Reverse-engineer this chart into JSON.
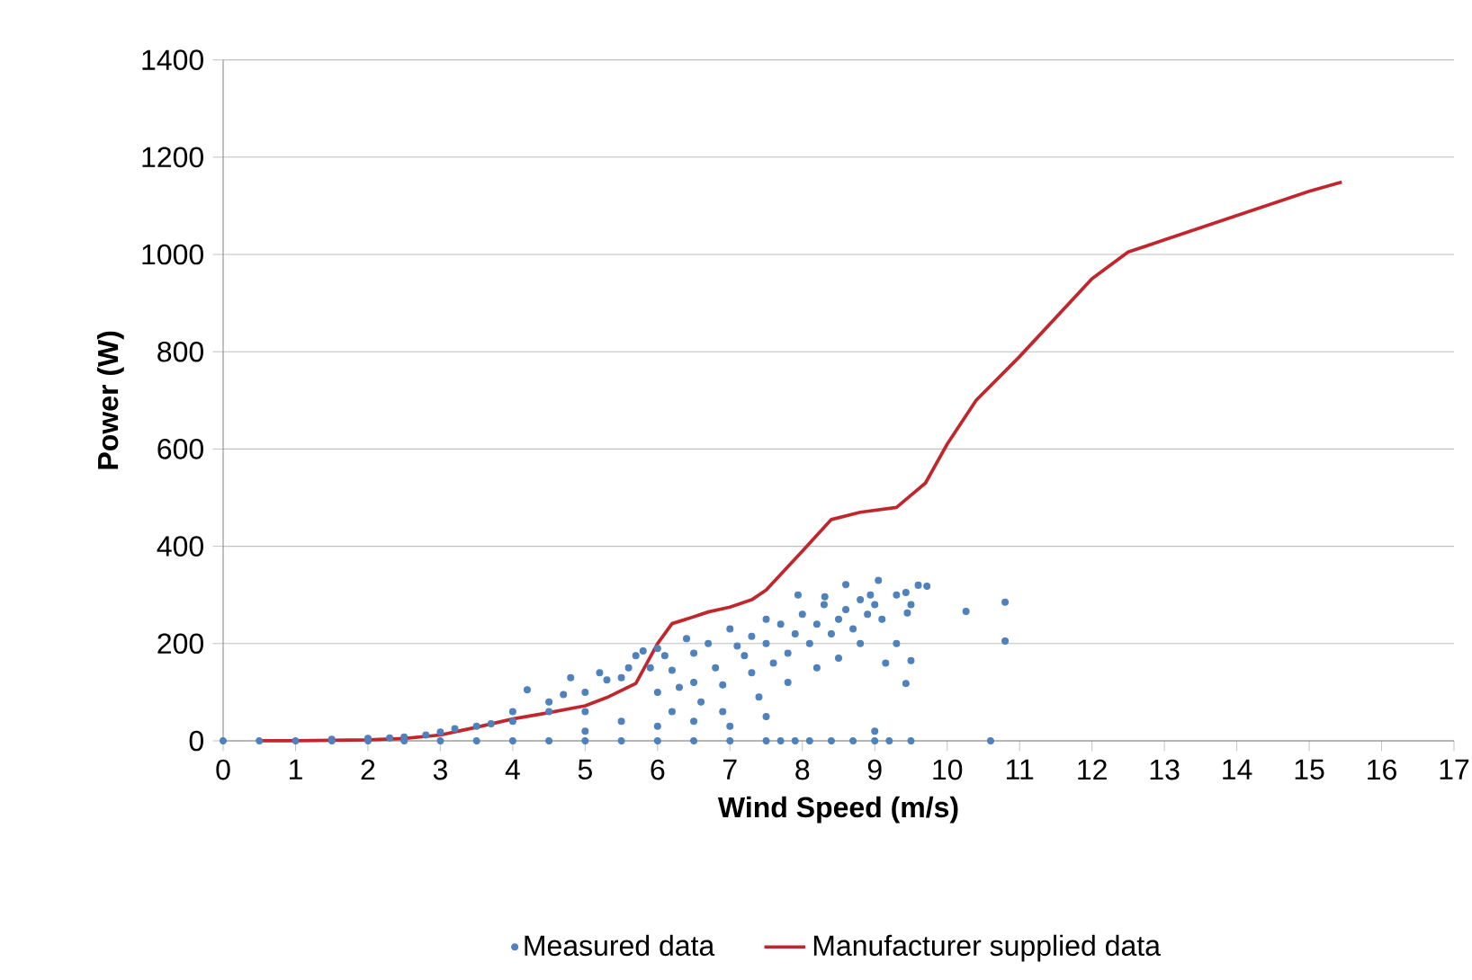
{
  "chart_data": {
    "type": "scatter",
    "xlabel": "Wind Speed (m/s)",
    "ylabel": "Power (W)",
    "xlim": [
      0,
      17
    ],
    "xticks": [
      0,
      1,
      2,
      3,
      4,
      5,
      6,
      7,
      8,
      9,
      10,
      11,
      12,
      13,
      14,
      15,
      16,
      17
    ],
    "ylim": [
      0,
      1400
    ],
    "yticks": [
      0,
      200,
      400,
      600,
      800,
      1000,
      1200,
      1400
    ],
    "grid": "y",
    "legend": "bottom",
    "series": [
      {
        "name": "Measured data",
        "marker": "circle",
        "color": "#4f81bd",
        "x": [
          0,
          0.5,
          1,
          1.5,
          2,
          2.5,
          3,
          3.5,
          4,
          4.5,
          5,
          5.5,
          6,
          6.5,
          7,
          7.5,
          7.7,
          7.9,
          8.1,
          8.4,
          8.7,
          9.0,
          9.2,
          9.5,
          10.6,
          1.5,
          2,
          2.3,
          2.5,
          2.8,
          3,
          3.2,
          3.5,
          3.7,
          4,
          4.2,
          4,
          4.5,
          4.5,
          4.7,
          4.8,
          5,
          5,
          5.2,
          5.3,
          5.5,
          5.6,
          5.7,
          5.8,
          5.9,
          6,
          6,
          6.1,
          6.2,
          6.3,
          6.4,
          6.5,
          6.5,
          6.6,
          6.7,
          6.8,
          6.9,
          6.9,
          7,
          7.1,
          7.2,
          7.3,
          7.3,
          7.4,
          7.5,
          7.5,
          7.6,
          7.7,
          7.8,
          7.8,
          7.9,
          8,
          8.1,
          8.2,
          8.2,
          8.3,
          8.4,
          8.5,
          8.5,
          8.6,
          8.7,
          8.8,
          8.8,
          8.9,
          9,
          9,
          9.1,
          9.3,
          9.3,
          9.5,
          9.6,
          9.5,
          5.5,
          6,
          6.5,
          7,
          5,
          6.2,
          7.5,
          8.6,
          9.05,
          9.72,
          10.26,
          9.43,
          8.94,
          9.43,
          9.15,
          9.45,
          7.94,
          8.31,
          10.8,
          10.8
        ],
        "values": [
          0,
          0,
          0,
          0,
          0,
          0,
          0,
          0,
          0,
          0,
          0,
          0,
          0,
          0,
          0,
          0,
          0,
          0,
          0,
          0,
          0,
          0,
          0,
          0,
          0,
          3,
          5,
          6,
          8,
          12,
          18,
          25,
          30,
          35,
          40,
          105,
          60,
          60,
          80,
          95,
          130,
          60,
          100,
          140,
          125,
          130,
          150,
          175,
          185,
          150,
          190,
          100,
          175,
          145,
          110,
          210,
          180,
          120,
          80,
          200,
          150,
          115,
          60,
          230,
          195,
          175,
          215,
          140,
          90,
          250,
          200,
          160,
          240,
          180,
          120,
          220,
          260,
          200,
          150,
          240,
          280,
          220,
          250,
          170,
          270,
          230,
          290,
          200,
          260,
          280,
          20,
          250,
          300,
          200,
          280,
          320,
          165,
          40,
          30,
          40,
          30,
          20,
          60,
          50,
          321,
          330,
          318,
          266,
          305,
          300,
          118,
          160,
          263,
          300,
          296,
          285,
          205
        ]
      },
      {
        "name": "Manufacturer supplied data",
        "type": "line",
        "marker": "none",
        "line_style": "solid",
        "color": "#c0272d",
        "x": [
          0.5,
          1,
          1.5,
          2,
          2.5,
          3,
          3.5,
          4,
          4.5,
          5,
          5.3,
          5.7,
          6,
          6.2,
          6.5,
          6.7,
          7,
          7.3,
          7.5,
          8,
          8.4,
          8.8,
          9.3,
          9.7,
          10,
          10.4,
          11,
          11.5,
          12,
          12.5,
          13,
          14,
          15,
          15.45
        ],
        "values": [
          0,
          0,
          1,
          2,
          5,
          12,
          28,
          45,
          58,
          72,
          89,
          118,
          200,
          241,
          255,
          265,
          275,
          290,
          310,
          390,
          455,
          470,
          480,
          530,
          610,
          700,
          790,
          870,
          950,
          1005,
          1030,
          1080,
          1130,
          1149
        ]
      }
    ]
  }
}
